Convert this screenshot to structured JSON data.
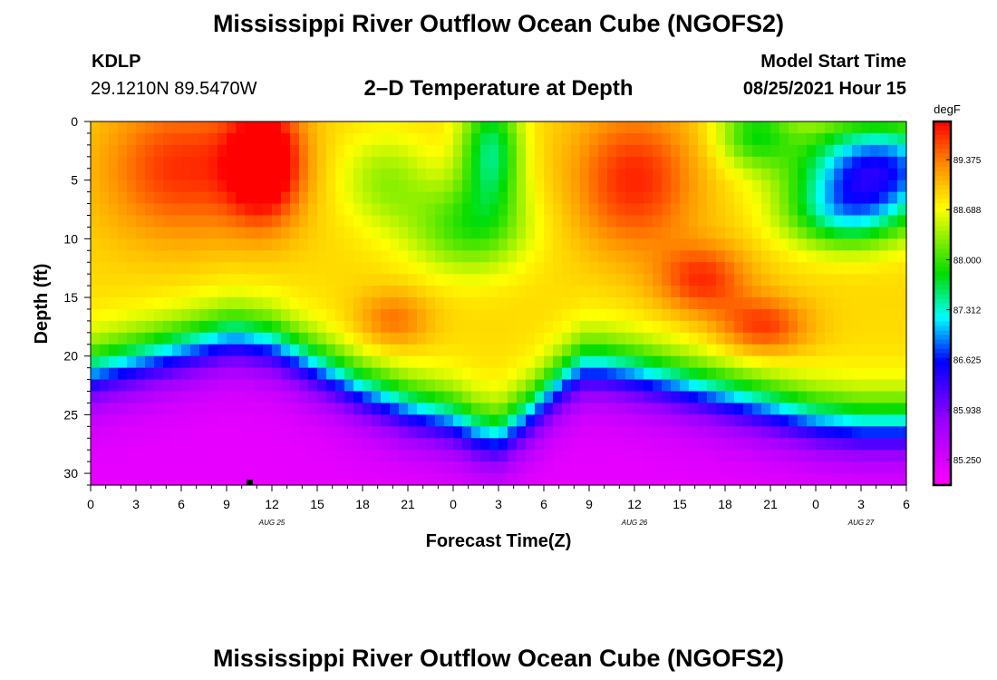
{
  "header": {
    "title": "Mississippi River Outflow Ocean Cube (NGOFS2)",
    "station_id": "KDLP",
    "coordinates": "29.1210N  89.5470W",
    "subtitle": "2–D Temperature at Depth",
    "model_label": "Model Start Time",
    "model_start": "08/25/2021 Hour 15"
  },
  "footer": {
    "title": "Mississippi River Outflow Ocean Cube (NGOFS2)"
  },
  "colors": {
    "background": "#ffffff",
    "axis": "#000000"
  },
  "chart_data": {
    "type": "heatmap",
    "title": "2–D Temperature at Depth",
    "xlabel": "Forecast Time(Z)",
    "ylabel": "Depth (ft)",
    "x_range_hours": [
      0,
      54
    ],
    "y_range_ft": [
      0,
      31
    ],
    "x_ticks": [
      {
        "h": 0,
        "label": "0"
      },
      {
        "h": 3,
        "label": "3"
      },
      {
        "h": 6,
        "label": "6"
      },
      {
        "h": 9,
        "label": "9"
      },
      {
        "h": 12,
        "label": "12"
      },
      {
        "h": 15,
        "label": "15"
      },
      {
        "h": 18,
        "label": "18"
      },
      {
        "h": 21,
        "label": "21"
      },
      {
        "h": 24,
        "label": "0"
      },
      {
        "h": 27,
        "label": "3"
      },
      {
        "h": 30,
        "label": "6"
      },
      {
        "h": 33,
        "label": "9"
      },
      {
        "h": 36,
        "label": "12"
      },
      {
        "h": 39,
        "label": "15"
      },
      {
        "h": 42,
        "label": "18"
      },
      {
        "h": 45,
        "label": "21"
      },
      {
        "h": 48,
        "label": "0"
      },
      {
        "h": 51,
        "label": "3"
      },
      {
        "h": 54,
        "label": "6"
      }
    ],
    "date_labels": [
      {
        "h": 12,
        "label": "AUG  25"
      },
      {
        "h": 36,
        "label": "AUG  26"
      },
      {
        "h": 51,
        "label": "AUG  27"
      }
    ],
    "y_ticks": [
      0,
      5,
      10,
      15,
      20,
      25,
      30
    ],
    "colorbar": {
      "unit": "degF",
      "min": 84.9,
      "max": 89.9,
      "labels": [
        "89.375",
        "88.688",
        "88.000",
        "87.312",
        "86.625",
        "85.938",
        "85.250"
      ],
      "label_values": [
        89.375,
        88.688,
        88.0,
        87.312,
        86.625,
        85.938,
        85.25
      ]
    },
    "model_start_marker": {
      "h": 10.5,
      "depth_ft": 31
    },
    "thermocline_depth_ft": [
      {
        "h": 0,
        "d": 21.5
      },
      {
        "h": 3,
        "d": 20.5
      },
      {
        "h": 6,
        "d": 19.5
      },
      {
        "h": 9,
        "d": 18.5
      },
      {
        "h": 10,
        "d": 18.5
      },
      {
        "h": 12,
        "d": 19.0
      },
      {
        "h": 15,
        "d": 21.0
      },
      {
        "h": 18,
        "d": 23.0
      },
      {
        "h": 21,
        "d": 24.5
      },
      {
        "h": 24,
        "d": 25.5
      },
      {
        "h": 25.5,
        "d": 26.5
      },
      {
        "h": 27,
        "d": 27.0
      },
      {
        "h": 29,
        "d": 25.0
      },
      {
        "h": 31,
        "d": 22.5
      },
      {
        "h": 32.5,
        "d": 21.0
      },
      {
        "h": 34,
        "d": 21.0
      },
      {
        "h": 36,
        "d": 21.5
      },
      {
        "h": 39,
        "d": 22.5
      },
      {
        "h": 42,
        "d": 23.5
      },
      {
        "h": 45,
        "d": 24.5
      },
      {
        "h": 48,
        "d": 25.5
      },
      {
        "h": 51,
        "d": 26.0
      },
      {
        "h": 54,
        "d": 26.0
      }
    ],
    "warm_cores": [
      {
        "h": 11.5,
        "d": 3.5,
        "amp": 1.4,
        "sh": 2.5,
        "sd": 5
      },
      {
        "h": 6,
        "d": 4,
        "amp": 0.8,
        "sh": 5,
        "sd": 6
      },
      {
        "h": 20,
        "d": 17,
        "amp": 0.55,
        "sh": 2.5,
        "sd": 2.5
      },
      {
        "h": 36,
        "d": 5,
        "amp": 0.85,
        "sh": 4,
        "sd": 6
      },
      {
        "h": 40.5,
        "d": 13.5,
        "amp": 0.8,
        "sh": 3,
        "sd": 3
      },
      {
        "h": 44.5,
        "d": 17.5,
        "amp": 0.8,
        "sh": 3,
        "sd": 2.5
      }
    ],
    "cool_cores": [
      {
        "h": 26.5,
        "d": 2.5,
        "amp": 1.35,
        "sh": 2,
        "sd": 5
      },
      {
        "h": 25,
        "d": 9,
        "amp": 0.9,
        "sh": 4,
        "sd": 4
      },
      {
        "h": 19.5,
        "d": 5,
        "amp": 0.55,
        "sh": 3,
        "sd": 4
      },
      {
        "h": 52,
        "d": 4,
        "amp": 2.3,
        "sh": 5,
        "sd": 4
      },
      {
        "h": 50,
        "d": 8,
        "amp": 1.2,
        "sh": 4,
        "sd": 3
      },
      {
        "h": 44,
        "d": 1,
        "amp": 1.0,
        "sh": 2.5,
        "sd": 3
      }
    ],
    "surface_base_temp_degF": 88.9,
    "bottom_temp_degF": 85.1
  }
}
